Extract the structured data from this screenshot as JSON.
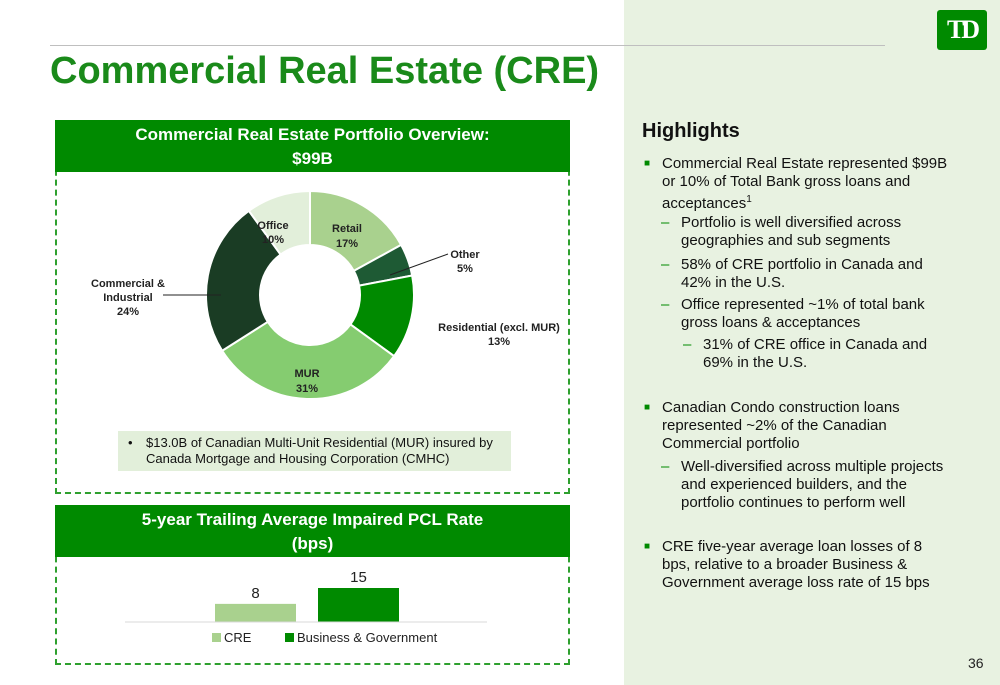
{
  "slide": {
    "title": "Commercial Real Estate (CRE)",
    "logo_text": "TD",
    "page_number": "36"
  },
  "chart_data": [
    {
      "type": "pie",
      "variant": "donut",
      "title": "Commercial Real Estate Portfolio Overview:",
      "title_line2": "$99B",
      "slices": [
        {
          "label": "Retail",
          "value": 17,
          "value_label": "17%",
          "color": "#a9d18e"
        },
        {
          "label": "Other",
          "value": 5,
          "value_label": "5%",
          "color": "#1e5a34"
        },
        {
          "label": "Residential (excl. MUR)",
          "value": 13,
          "value_label": "13%",
          "color": "#008a00"
        },
        {
          "label": "MUR",
          "value": 31,
          "value_label": "31%",
          "color": "#85cc70"
        },
        {
          "label": "Commercial &",
          "label_line2": "Industrial",
          "value": 24,
          "value_label": "24%",
          "color": "#1a3c24"
        },
        {
          "label": "Office",
          "value": 10,
          "value_label": "10%",
          "color": "#e2efda"
        }
      ],
      "note": "$13.0B of Canadian Multi-Unit Residential (MUR) insured by Canada Mortgage and Housing Corporation (CMHC)"
    },
    {
      "type": "bar",
      "title": "5-year Trailing Average Impaired PCL Rate",
      "title_line2": "(bps)",
      "categories": [
        "CRE",
        "Business & Government"
      ],
      "values": [
        8,
        15
      ],
      "colors": [
        "#a9d18e",
        "#008a00"
      ],
      "legend": "bottom"
    }
  ],
  "highlights": {
    "title": "Highlights",
    "b1": {
      "l1": "Commercial Real Estate represented $99B",
      "l2": "or 10% of Total Bank gross loans and",
      "l3": "acceptances",
      "sup": "1"
    },
    "s1": {
      "l1": "Portfolio is well diversified across",
      "l2": "geographies and sub segments"
    },
    "s2": {
      "l1": "58% of CRE portfolio in Canada and",
      "l2": "42% in the U.S."
    },
    "s3": {
      "l1": "Office represented ~1% of total bank",
      "l2": "gross loans & acceptances"
    },
    "s4": {
      "l1": "31% of CRE office in Canada and",
      "l2": "69% in the U.S."
    },
    "b2": {
      "l1": "Canadian Condo construction loans",
      "l2": "represented ~2% of the Canadian",
      "l3": "Commercial portfolio"
    },
    "s5": {
      "l1": "Well-diversified across multiple projects",
      "l2": "and experienced builders, and the",
      "l3": "portfolio continues to perform well"
    },
    "b3": {
      "l1": "CRE five-year average loan losses of 8",
      "l2": "bps, relative to a broader Business &",
      "l3": "Government average loss rate of 15 bps"
    },
    "bullet_mark": "■",
    "dash_mark": "–",
    "note_bullet": "•"
  }
}
